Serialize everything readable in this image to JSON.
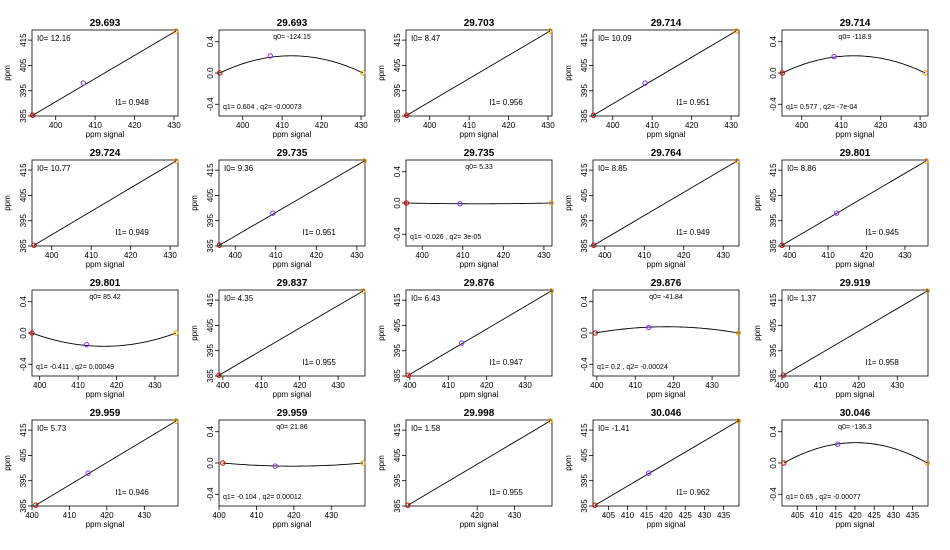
{
  "chart_data": [
    {
      "title": "29.693",
      "type": "line",
      "panel": "linear",
      "annot": {
        "top": "I0=  12.16",
        "bottom": "I1=  0.948"
      },
      "xlabel": "ppm signal",
      "ylabel": "ppm",
      "xlim": [
        394,
        431
      ],
      "ylim": [
        385,
        419
      ],
      "xticks": [
        400,
        410,
        420,
        430
      ],
      "yticks": [
        385,
        395,
        405,
        415
      ],
      "points": [
        {
          "x": 394.2,
          "y": 385.3,
          "color": "#cc0000"
        },
        {
          "x": 407.0,
          "y": 398.0,
          "color": "#7733dd"
        },
        {
          "x": 430.5,
          "y": 418.6,
          "color": "#e6a000"
        }
      ]
    },
    {
      "title": "29.693",
      "type": "line",
      "panel": "quadratic",
      "annot": {
        "top": "q0=  -124.15",
        "bottom": "q1=  0.604  , q2=  -0.00073"
      },
      "xlabel": "ppm signal",
      "ylabel": "",
      "xlim": [
        394,
        431
      ],
      "ylim": [
        -0.55,
        0.55
      ],
      "xticks": [
        400,
        410,
        420,
        430
      ],
      "yticks": [
        -0.4,
        0.0,
        0.4
      ],
      "curve": {
        "x0": 394.2,
        "x1": 430.5,
        "peak": 0.22,
        "px": 412
      },
      "points": [
        {
          "x": 394.2,
          "y": 0.0,
          "color": "#cc0000"
        },
        {
          "x": 407.0,
          "y": 0.22,
          "color": "#7733dd"
        },
        {
          "x": 430.5,
          "y": 0.0,
          "color": "#e6a000"
        }
      ]
    },
    {
      "title": "29.703",
      "type": "line",
      "panel": "linear",
      "annot": {
        "top": "I0=  8.47",
        "bottom": "I1=  0.956"
      },
      "xlabel": "ppm signal",
      "ylabel": "ppm",
      "xlim": [
        394,
        431
      ],
      "ylim": [
        385,
        419
      ],
      "xticks": [
        400,
        410,
        420,
        430
      ],
      "yticks": [
        385,
        395,
        405,
        415
      ],
      "points": [
        {
          "x": 394.2,
          "y": 385.3,
          "color": "#cc0000"
        },
        {
          "x": 430.5,
          "y": 418.6,
          "color": "#e6a000"
        }
      ]
    },
    {
      "title": "29.714",
      "type": "line",
      "panel": "linear",
      "annot": {
        "top": "I0=  10.09",
        "bottom": "I1=  0.951"
      },
      "xlabel": "ppm signal",
      "ylabel": "ppm",
      "xlim": [
        395,
        432
      ],
      "ylim": [
        385,
        419
      ],
      "xticks": [
        400,
        410,
        420,
        430
      ],
      "yticks": [
        385,
        395,
        405,
        415
      ],
      "points": [
        {
          "x": 395.1,
          "y": 385.3,
          "color": "#cc0000"
        },
        {
          "x": 408.2,
          "y": 398.0,
          "color": "#7733dd"
        },
        {
          "x": 431.3,
          "y": 418.6,
          "color": "#e6a000"
        }
      ]
    },
    {
      "title": "29.714",
      "type": "line",
      "panel": "quadratic",
      "annot": {
        "top": "q0=  -118.9",
        "bottom": "q1=  0.577  , q2=  -7e-04"
      },
      "xlabel": "ppm signal",
      "ylabel": "",
      "xlim": [
        395,
        432
      ],
      "ylim": [
        -0.55,
        0.55
      ],
      "xticks": [
        400,
        410,
        420,
        430
      ],
      "yticks": [
        -0.4,
        0.0,
        0.4
      ],
      "curve": {
        "x0": 395.1,
        "x1": 431.3,
        "peak": 0.22,
        "px": 413
      },
      "points": [
        {
          "x": 395.1,
          "y": 0.0,
          "color": "#cc0000"
        },
        {
          "x": 408.2,
          "y": 0.21,
          "color": "#7733dd"
        },
        {
          "x": 431.3,
          "y": 0.0,
          "color": "#e6a000"
        }
      ]
    },
    {
      "title": "29.724",
      "type": "line",
      "panel": "linear",
      "annot": {
        "top": "I0=  10.77",
        "bottom": "I1=  0.949"
      },
      "xlabel": "ppm signal",
      "ylabel": "ppm",
      "xlim": [
        395,
        432
      ],
      "ylim": [
        385,
        419
      ],
      "xticks": [
        400,
        410,
        420,
        430
      ],
      "yticks": [
        385,
        395,
        405,
        415
      ],
      "points": [
        {
          "x": 395.5,
          "y": 385.3,
          "color": "#cc0000"
        },
        {
          "x": 431.5,
          "y": 418.6,
          "color": "#e6a000"
        }
      ]
    },
    {
      "title": "29.735",
      "type": "line",
      "panel": "linear",
      "annot": {
        "top": "I0=  9.36",
        "bottom": "I1=  0.951"
      },
      "xlabel": "ppm signal",
      "ylabel": "ppm",
      "xlim": [
        396,
        432
      ],
      "ylim": [
        385,
        419
      ],
      "xticks": [
        400,
        410,
        420,
        430
      ],
      "yticks": [
        385,
        395,
        405,
        415
      ],
      "points": [
        {
          "x": 396.1,
          "y": 385.3,
          "color": "#cc0000"
        },
        {
          "x": 409.3,
          "y": 398.0,
          "color": "#7733dd"
        },
        {
          "x": 431.8,
          "y": 418.6,
          "color": "#e6a000"
        }
      ]
    },
    {
      "title": "29.735",
      "type": "line",
      "panel": "quadratic",
      "annot": {
        "top": "q0=  5.33",
        "bottom": "q1=  -0.026  , q2=  3e-05"
      },
      "xlabel": "ppm signal",
      "ylabel": "",
      "xlim": [
        396,
        432
      ],
      "ylim": [
        -0.55,
        0.55
      ],
      "xticks": [
        400,
        410,
        420,
        430
      ],
      "yticks": [
        -0.4,
        0.0,
        0.4
      ],
      "curve": {
        "x0": 396.1,
        "x1": 431.8,
        "peak": -0.01,
        "px": 414
      },
      "points": [
        {
          "x": 396.1,
          "y": 0.0,
          "color": "#cc0000"
        },
        {
          "x": 409.3,
          "y": -0.01,
          "color": "#7733dd"
        },
        {
          "x": 431.8,
          "y": 0.0,
          "color": "#e6a000"
        }
      ]
    },
    {
      "title": "29.764",
      "type": "line",
      "panel": "linear",
      "annot": {
        "top": "I0=  8.85",
        "bottom": "I1=  0.949"
      },
      "xlabel": "ppm signal",
      "ylabel": "ppm",
      "xlim": [
        397,
        434
      ],
      "ylim": [
        385,
        419
      ],
      "xticks": [
        400,
        410,
        420,
        430
      ],
      "yticks": [
        385,
        395,
        405,
        415
      ],
      "points": [
        {
          "x": 397.2,
          "y": 385.3,
          "color": "#cc0000"
        },
        {
          "x": 433.5,
          "y": 418.6,
          "color": "#e6a000"
        }
      ]
    },
    {
      "title": "29.801",
      "type": "line",
      "panel": "linear",
      "annot": {
        "top": "I0=  8.86",
        "bottom": "I1=  0.945"
      },
      "xlabel": "ppm signal",
      "ylabel": "ppm",
      "xlim": [
        398,
        436
      ],
      "ylim": [
        385,
        419
      ],
      "xticks": [
        400,
        410,
        420,
        430
      ],
      "yticks": [
        385,
        395,
        405,
        415
      ],
      "points": [
        {
          "x": 398.0,
          "y": 385.3,
          "color": "#cc0000"
        },
        {
          "x": 412.2,
          "y": 398.0,
          "color": "#7733dd"
        },
        {
          "x": 435.5,
          "y": 418.6,
          "color": "#e6a000"
        }
      ]
    },
    {
      "title": "29.801",
      "type": "line",
      "panel": "quadratic",
      "annot": {
        "top": "q0=  85.42",
        "bottom": "q1=  -0.411  , q2=  0.00049"
      },
      "xlabel": "ppm signal",
      "ylabel": "",
      "xlim": [
        398,
        436
      ],
      "ylim": [
        -0.55,
        0.55
      ],
      "xticks": [
        400,
        410,
        420,
        430
      ],
      "yticks": [
        -0.4,
        0.0,
        0.4
      ],
      "curve": {
        "x0": 398.0,
        "x1": 435.5,
        "peak": -0.17,
        "px": 416
      },
      "points": [
        {
          "x": 398.0,
          "y": 0.0,
          "color": "#cc0000"
        },
        {
          "x": 412.2,
          "y": -0.15,
          "color": "#7733dd"
        },
        {
          "x": 435.5,
          "y": 0.0,
          "color": "#e6a000"
        }
      ]
    },
    {
      "title": "29.837",
      "type": "line",
      "panel": "linear",
      "annot": {
        "top": "I0=  4.35",
        "bottom": "I1=  0.955"
      },
      "xlabel": "ppm signal",
      "ylabel": "ppm",
      "xlim": [
        399,
        437
      ],
      "ylim": [
        385,
        419
      ],
      "xticks": [
        400,
        410,
        420,
        430
      ],
      "yticks": [
        385,
        395,
        405,
        415
      ],
      "points": [
        {
          "x": 399.0,
          "y": 385.3,
          "color": "#cc0000"
        },
        {
          "x": 436.5,
          "y": 418.6,
          "color": "#e6a000"
        }
      ]
    },
    {
      "title": "29.876",
      "type": "line",
      "panel": "linear",
      "annot": {
        "top": "I0=  6.43",
        "bottom": "I1=  0.947"
      },
      "xlabel": "ppm signal",
      "ylabel": "ppm",
      "xlim": [
        399,
        437
      ],
      "ylim": [
        385,
        419
      ],
      "xticks": [
        400,
        410,
        420,
        430
      ],
      "yticks": [
        385,
        395,
        405,
        415
      ],
      "points": [
        {
          "x": 399.6,
          "y": 385.3,
          "color": "#cc0000"
        },
        {
          "x": 413.5,
          "y": 398.0,
          "color": "#7733dd"
        },
        {
          "x": 436.8,
          "y": 418.6,
          "color": "#e6a000"
        }
      ]
    },
    {
      "title": "29.876",
      "type": "line",
      "panel": "quadratic",
      "annot": {
        "top": "q0=  -41.84",
        "bottom": "q1=  0.2  , q2=  -0.00024"
      },
      "xlabel": "ppm signal",
      "ylabel": "",
      "xlim": [
        399,
        437
      ],
      "ylim": [
        -0.55,
        0.55
      ],
      "xticks": [
        400,
        410,
        420,
        430
      ],
      "yticks": [
        -0.4,
        0.0,
        0.4
      ],
      "curve": {
        "x0": 399.6,
        "x1": 436.8,
        "peak": 0.08,
        "px": 418
      },
      "points": [
        {
          "x": 399.6,
          "y": 0.0,
          "color": "#cc0000"
        },
        {
          "x": 413.5,
          "y": 0.07,
          "color": "#7733dd"
        },
        {
          "x": 436.8,
          "y": 0.0,
          "color": "#e6a000"
        }
      ]
    },
    {
      "title": "29.919",
      "type": "line",
      "panel": "linear",
      "annot": {
        "top": "I0=  1.37",
        "bottom": "I1=  0.958"
      },
      "xlabel": "ppm signal",
      "ylabel": "ppm",
      "xlim": [
        400,
        438
      ],
      "ylim": [
        385,
        419
      ],
      "xticks": [
        400,
        410,
        420,
        430
      ],
      "yticks": [
        385,
        395,
        405,
        415
      ],
      "points": [
        {
          "x": 400.4,
          "y": 385.3,
          "color": "#cc0000"
        },
        {
          "x": 437.8,
          "y": 418.6,
          "color": "#e6a000"
        }
      ]
    },
    {
      "title": "29.959",
      "type": "line",
      "panel": "linear",
      "annot": {
        "top": "I0=  5.73",
        "bottom": "I1=  0.946"
      },
      "xlabel": "ppm signal",
      "ylabel": "ppm",
      "xlim": [
        400,
        439
      ],
      "ylim": [
        385,
        419
      ],
      "xticks": [
        400,
        410,
        420,
        430
      ],
      "yticks": [
        385,
        395,
        405,
        415
      ],
      "points": [
        {
          "x": 401.0,
          "y": 385.3,
          "color": "#cc0000"
        },
        {
          "x": 415.0,
          "y": 398.0,
          "color": "#7733dd"
        },
        {
          "x": 438.5,
          "y": 418.6,
          "color": "#e6a000"
        }
      ]
    },
    {
      "title": "29.959",
      "type": "line",
      "panel": "quadratic",
      "annot": {
        "top": "q0=  21.86",
        "bottom": "q1=  -0.104  , q2=  0.00012"
      },
      "xlabel": "ppm signal",
      "ylabel": "",
      "xlim": [
        400,
        439
      ],
      "ylim": [
        -0.55,
        0.55
      ],
      "xticks": [
        400,
        410,
        420,
        430
      ],
      "yticks": [
        -0.4,
        0.0,
        0.4
      ],
      "curve": {
        "x0": 401.0,
        "x1": 438.5,
        "peak": -0.04,
        "px": 418
      },
      "points": [
        {
          "x": 401.0,
          "y": 0.0,
          "color": "#cc0000"
        },
        {
          "x": 415.0,
          "y": -0.04,
          "color": "#7733dd"
        },
        {
          "x": 438.5,
          "y": 0.0,
          "color": "#e6a000"
        }
      ]
    },
    {
      "title": "29.998",
      "type": "line",
      "panel": "linear",
      "annot": {
        "top": "I0=  1.58",
        "bottom": "I1=  0.955"
      },
      "xlabel": "ppm signal",
      "ylabel": "ppm",
      "xlim": [
        401,
        440
      ],
      "ylim": [
        385,
        419
      ],
      "xticks": [
        420,
        430
      ],
      "yticks": [
        385,
        395,
        405,
        415
      ],
      "points": [
        {
          "x": 401.5,
          "y": 385.3,
          "color": "#cc0000"
        },
        {
          "x": 439.5,
          "y": 418.6,
          "color": "#e6a000"
        }
      ]
    },
    {
      "title": "30.046",
      "type": "line",
      "panel": "linear",
      "annot": {
        "top": "I0=  -1.41",
        "bottom": "I1=  0.962"
      },
      "xlabel": "ppm signal",
      "ylabel": "ppm",
      "xlim": [
        401,
        439
      ],
      "ylim": [
        385,
        419
      ],
      "xticks": [
        405,
        410,
        415,
        420,
        425,
        430,
        435
      ],
      "yticks": [
        385,
        395,
        405,
        415
      ],
      "points": [
        {
          "x": 401.5,
          "y": 385.3,
          "color": "#cc0000"
        },
        {
          "x": 415.5,
          "y": 398.0,
          "color": "#7733dd"
        },
        {
          "x": 438.8,
          "y": 418.6,
          "color": "#e6a000"
        }
      ]
    },
    {
      "title": "30.046",
      "type": "line",
      "panel": "quadratic",
      "annot": {
        "top": "q0=  -136.3",
        "bottom": "q1=  0.65  , q2=  -0.00077"
      },
      "xlabel": "ppm signal",
      "ylabel": "",
      "xlim": [
        401,
        439
      ],
      "ylim": [
        -0.55,
        0.55
      ],
      "xticks": [
        405,
        410,
        415,
        420,
        425,
        430,
        435
      ],
      "yticks": [
        -0.4,
        0.0,
        0.4
      ],
      "curve": {
        "x0": 401.5,
        "x1": 438.8,
        "peak": 0.26,
        "px": 420
      },
      "points": [
        {
          "x": 401.5,
          "y": 0.0,
          "color": "#cc0000"
        },
        {
          "x": 415.5,
          "y": 0.24,
          "color": "#7733dd"
        },
        {
          "x": 438.8,
          "y": 0.0,
          "color": "#e6a000"
        }
      ]
    }
  ]
}
